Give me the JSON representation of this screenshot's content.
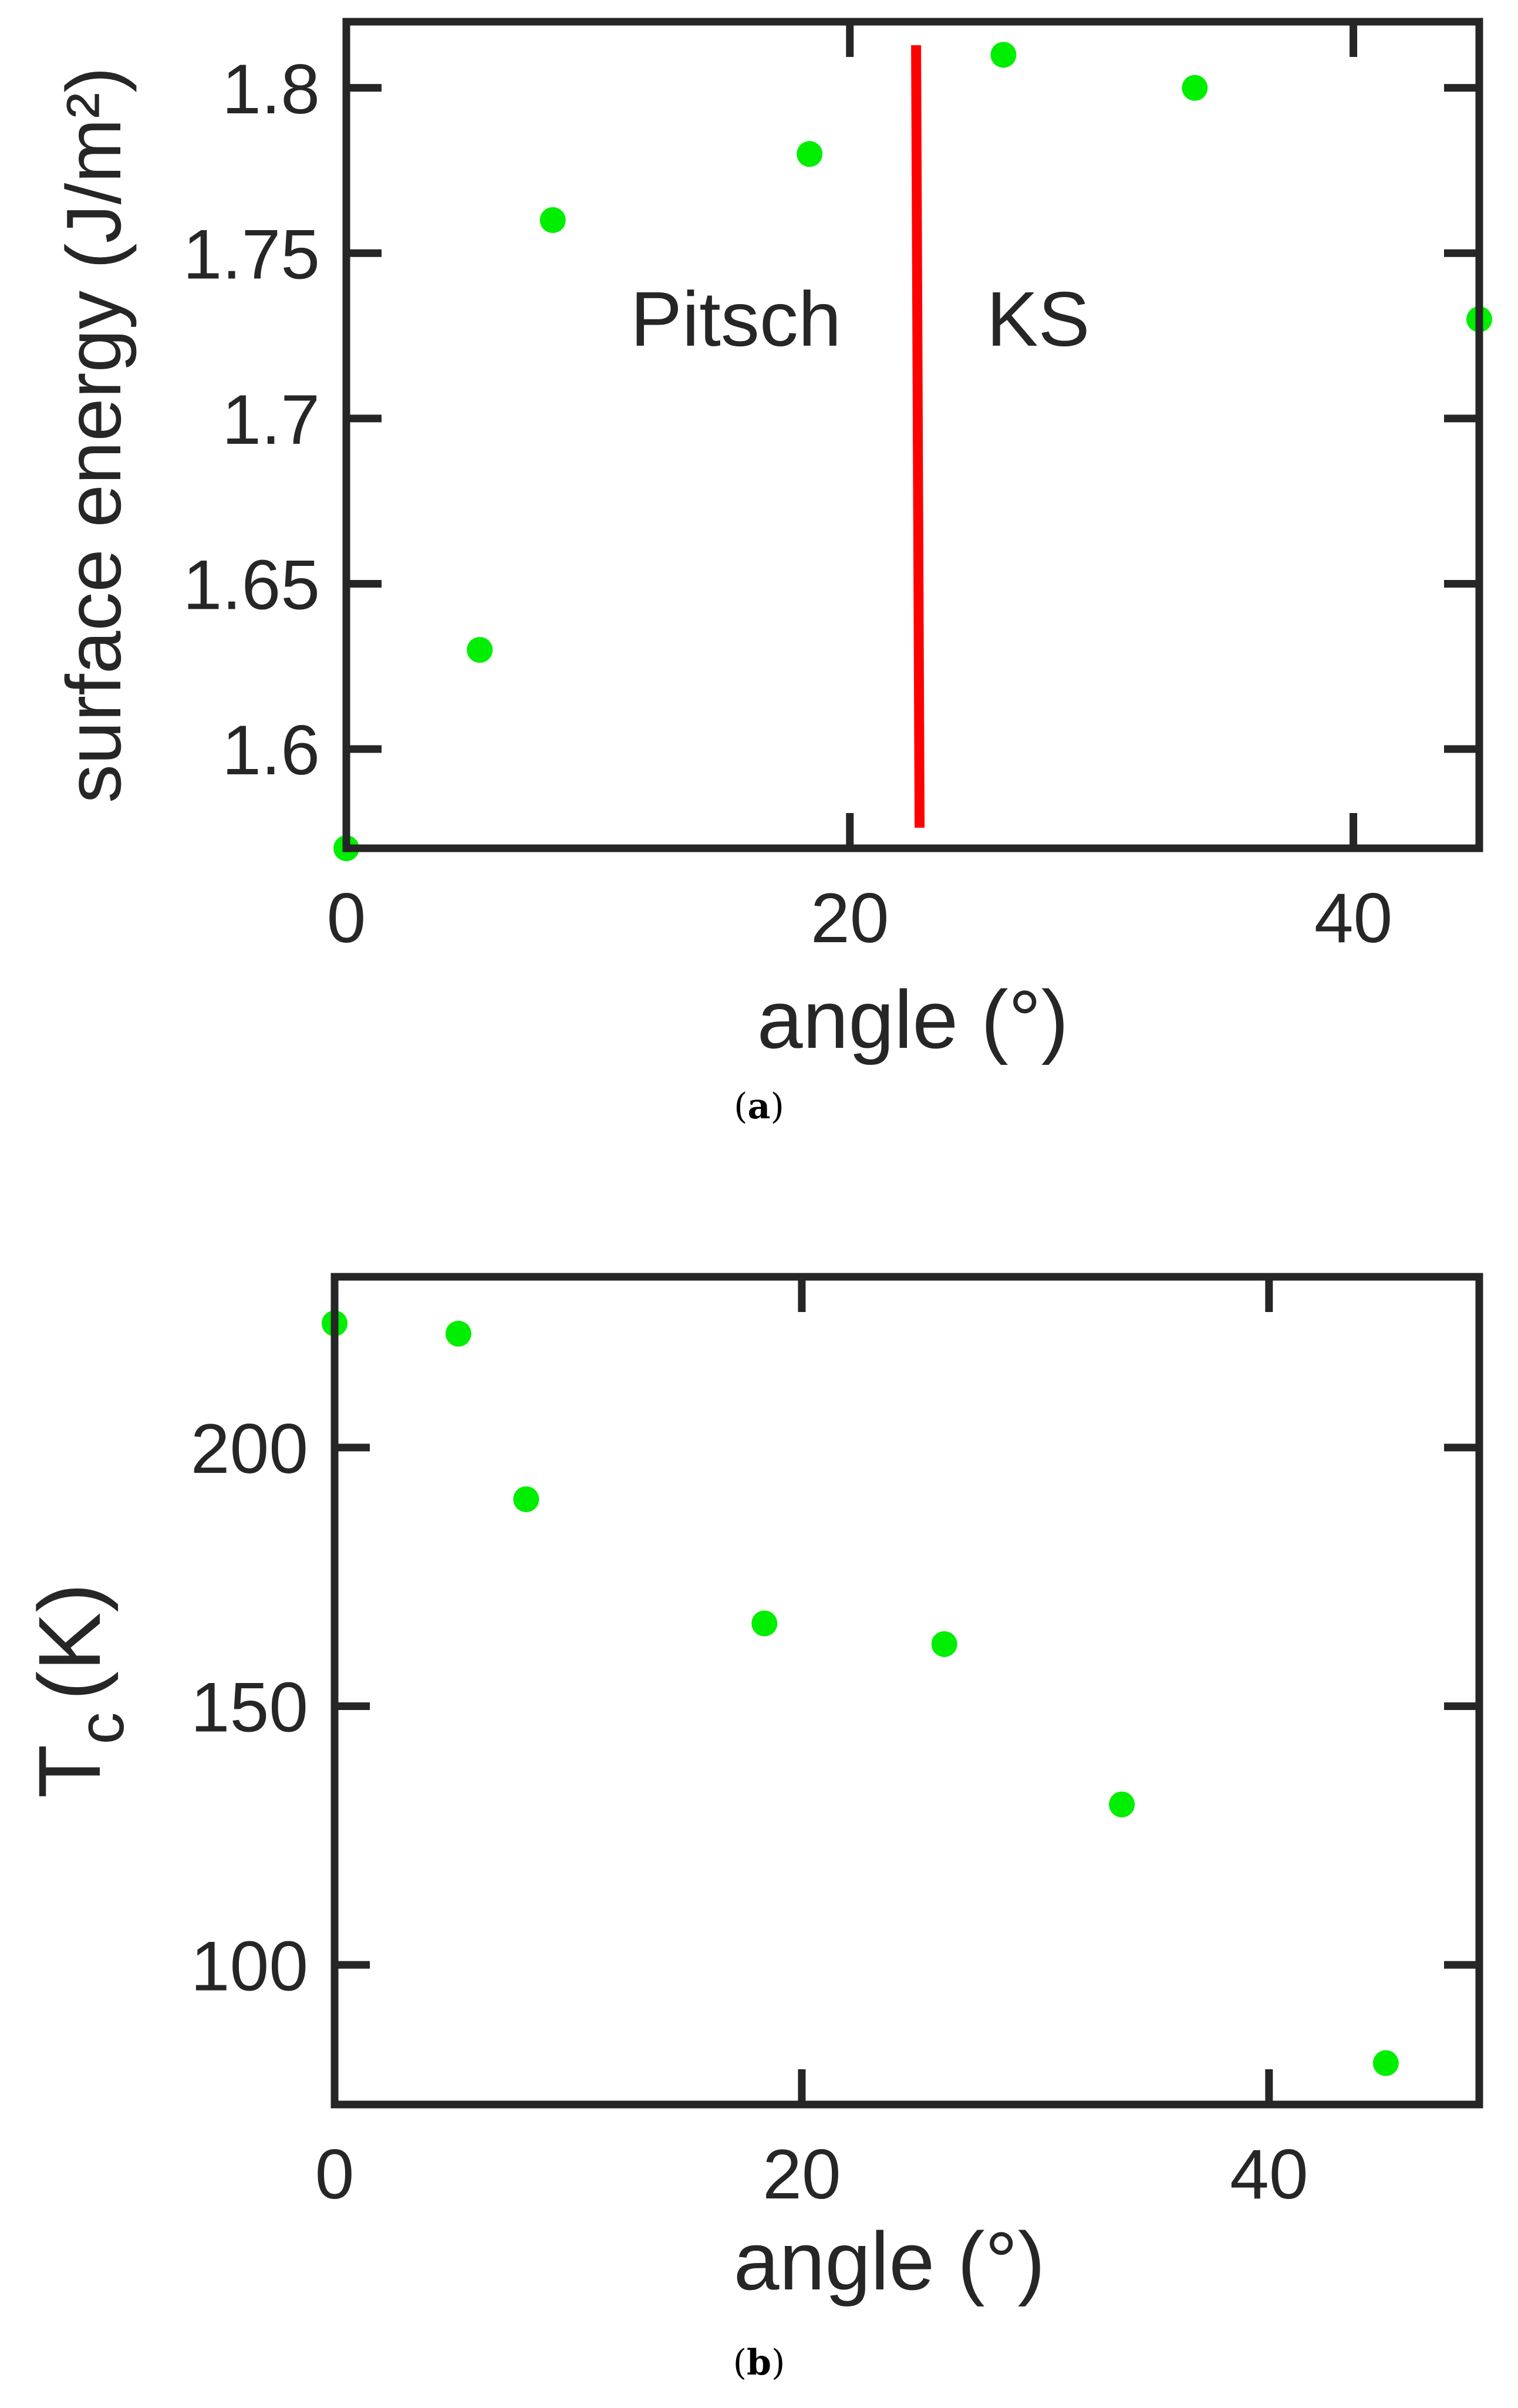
{
  "colors": {
    "marker": "#00ee00",
    "annotation_line": "#ff0000",
    "annotation_text": "#ff0000",
    "axes": "#262626"
  },
  "captions": {
    "a": {
      "open": "(",
      "letter": "a",
      "close": ")"
    },
    "b": {
      "open": "(",
      "letter": "b",
      "close": ")"
    }
  },
  "chart_data": [
    {
      "type": "scatter",
      "xlabel": "angle (°)",
      "ylabel": "surface energy (J/m²)",
      "xlim": [
        0,
        45
      ],
      "ylim": [
        1.57,
        1.82
      ],
      "xticks": [
        0,
        20,
        40
      ],
      "yticks": [
        1.6,
        1.65,
        1.7,
        1.75,
        1.8
      ],
      "grid": false,
      "x": [
        0,
        5.3,
        8.2,
        18.4,
        26.1,
        33.7,
        45
      ],
      "y": [
        1.57,
        1.63,
        1.76,
        1.78,
        1.81,
        1.8,
        1.73
      ],
      "annotations": {
        "line_x": 22.7,
        "left_label": "Pitsch",
        "right_label": "KS"
      }
    },
    {
      "type": "scatter",
      "xlabel": "angle (°)",
      "ylabel_main": "T",
      "ylabel_sub": "c",
      "ylabel_unit": "(K)",
      "xlim": [
        0,
        49
      ],
      "ylim": [
        73,
        233
      ],
      "xticks": [
        0,
        20,
        40
      ],
      "yticks": [
        100,
        150,
        200
      ],
      "grid": false,
      "x": [
        0,
        5.3,
        8.2,
        18.4,
        26.1,
        33.7,
        45
      ],
      "y": [
        224,
        222,
        190,
        166,
        162,
        131,
        81
      ]
    }
  ]
}
